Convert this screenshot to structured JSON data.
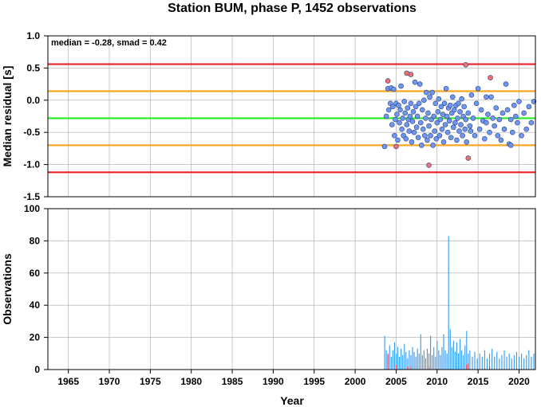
{
  "chart_data": [
    {
      "type": "scatter",
      "title": "Station BUM, phase P, 1452 observations",
      "annotation": "median = -0.28, smad = 0.42",
      "ylabel": "Median residual [s]",
      "xlim": [
        1962.5,
        2022.0
      ],
      "ylim": [
        -1.5,
        1.0
      ],
      "yticks": [
        "1.0",
        "0.5",
        "0.0",
        "-0.5",
        "-1.0",
        "-1.5"
      ],
      "ytick_values": [
        1.0,
        0.5,
        0.0,
        -0.5,
        -1.0,
        -1.5
      ],
      "grid": true,
      "reference_lines": [
        {
          "y": 0.56,
          "color": "#e8202a"
        },
        {
          "y": 0.14,
          "color": "#f5a623"
        },
        {
          "y": -0.28,
          "color": "#22ee22"
        },
        {
          "y": -0.7,
          "color": "#f5a623"
        },
        {
          "y": -1.12,
          "color": "#e8202a"
        }
      ],
      "series": [
        {
          "color": "#6f97ee",
          "points": [
            [
              2003.6,
              -0.72
            ],
            [
              2003.8,
              -0.25
            ],
            [
              2004.0,
              0.18
            ],
            [
              2004.1,
              -0.15
            ],
            [
              2004.3,
              -0.05
            ],
            [
              2004.4,
              0.19
            ],
            [
              2004.5,
              -0.38
            ],
            [
              2004.6,
              -0.1
            ],
            [
              2004.7,
              0.17
            ],
            [
              2004.8,
              -0.55
            ],
            [
              2004.9,
              -0.3
            ],
            [
              2005.0,
              -0.05
            ],
            [
              2005.1,
              -0.22
            ],
            [
              2005.2,
              -0.62
            ],
            [
              2005.3,
              -0.08
            ],
            [
              2005.4,
              -0.35
            ],
            [
              2005.5,
              -0.15
            ],
            [
              2005.6,
              0.22
            ],
            [
              2005.7,
              -0.45
            ],
            [
              2005.8,
              -0.28
            ],
            [
              2005.9,
              -0.55
            ],
            [
              2006.0,
              -0.02
            ],
            [
              2006.1,
              -0.2
            ],
            [
              2006.2,
              -0.6
            ],
            [
              2006.3,
              -0.38
            ],
            [
              2006.4,
              -0.12
            ],
            [
              2006.5,
              -0.3
            ],
            [
              2006.6,
              -0.48
            ],
            [
              2006.7,
              -0.25
            ],
            [
              2006.8,
              -0.05
            ],
            [
              2006.9,
              -0.65
            ],
            [
              2007.0,
              -0.33
            ],
            [
              2007.1,
              -0.18
            ],
            [
              2007.2,
              -0.5
            ],
            [
              2007.3,
              0.28
            ],
            [
              2007.4,
              -0.1
            ],
            [
              2007.5,
              -0.42
            ],
            [
              2007.6,
              -0.25
            ],
            [
              2007.7,
              -0.58
            ],
            [
              2007.8,
              -0.05
            ],
            [
              2007.9,
              0.25
            ],
            [
              2008.0,
              -0.35
            ],
            [
              2008.1,
              -0.7
            ],
            [
              2008.2,
              -0.15
            ],
            [
              2008.3,
              -0.45
            ],
            [
              2008.4,
              0.0
            ],
            [
              2008.5,
              -0.55
            ],
            [
              2008.6,
              -0.28
            ],
            [
              2008.7,
              0.12
            ],
            [
              2008.8,
              -0.62
            ],
            [
              2008.9,
              -0.2
            ],
            [
              2009.0,
              -0.4
            ],
            [
              2009.1,
              0.05
            ],
            [
              2009.2,
              -0.55
            ],
            [
              2009.3,
              -0.3
            ],
            [
              2009.4,
              0.12
            ],
            [
              2009.5,
              -0.7
            ],
            [
              2009.6,
              -0.25
            ],
            [
              2009.7,
              -0.48
            ],
            [
              2009.8,
              -0.05
            ],
            [
              2009.9,
              -0.6
            ],
            [
              2010.0,
              -0.35
            ],
            [
              2010.1,
              -0.18
            ],
            [
              2010.2,
              0.02
            ],
            [
              2010.3,
              -0.55
            ],
            [
              2010.4,
              -0.3
            ],
            [
              2010.5,
              -0.1
            ],
            [
              2010.6,
              -0.45
            ],
            [
              2010.7,
              -0.22
            ],
            [
              2010.8,
              -0.65
            ],
            [
              2010.9,
              -0.05
            ],
            [
              2011.0,
              -0.38
            ],
            [
              2011.1,
              0.18
            ],
            [
              2011.2,
              -0.25
            ],
            [
              2011.3,
              -0.5
            ],
            [
              2011.4,
              -0.12
            ],
            [
              2011.5,
              -0.32
            ],
            [
              2011.6,
              -0.08
            ],
            [
              2011.7,
              -0.58
            ],
            [
              2011.8,
              -0.2
            ],
            [
              2011.9,
              0.05
            ],
            [
              2012.0,
              -0.42
            ],
            [
              2012.1,
              -0.15
            ],
            [
              2012.2,
              -0.35
            ],
            [
              2012.3,
              -0.08
            ],
            [
              2012.4,
              -0.62
            ],
            [
              2012.5,
              -0.28
            ],
            [
              2012.6,
              -0.05
            ],
            [
              2012.7,
              -0.48
            ],
            [
              2012.8,
              -0.18
            ],
            [
              2012.9,
              -0.38
            ],
            [
              2013.0,
              0.02
            ],
            [
              2013.1,
              -0.55
            ],
            [
              2013.2,
              -0.25
            ],
            [
              2013.3,
              -0.1
            ],
            [
              2013.4,
              -0.45
            ],
            [
              2013.5,
              -0.3
            ],
            [
              2013.6,
              -0.65
            ],
            [
              2013.8,
              -0.2
            ],
            [
              2014.0,
              -0.4
            ],
            [
              2014.2,
              0.08
            ],
            [
              2014.4,
              -0.28
            ],
            [
              2014.6,
              -0.55
            ],
            [
              2014.8,
              -0.05
            ],
            [
              2015.0,
              0.18
            ],
            [
              2015.2,
              -0.45
            ],
            [
              2015.4,
              -0.15
            ],
            [
              2015.6,
              -0.32
            ],
            [
              2015.8,
              -0.6
            ],
            [
              2016.0,
              0.05
            ],
            [
              2016.2,
              -0.22
            ],
            [
              2016.4,
              -0.5
            ],
            [
              2016.6,
              0.05
            ],
            [
              2016.8,
              -0.28
            ],
            [
              2017.0,
              -0.4
            ],
            [
              2017.2,
              -0.12
            ],
            [
              2017.4,
              -0.55
            ],
            [
              2017.6,
              -0.3
            ],
            [
              2017.8,
              -0.62
            ],
            [
              2018.0,
              -0.2
            ],
            [
              2018.2,
              -0.45
            ],
            [
              2018.4,
              0.25
            ],
            [
              2018.6,
              -0.15
            ],
            [
              2018.8,
              -0.68
            ],
            [
              2019.0,
              -0.3
            ],
            [
              2019.2,
              -0.5
            ],
            [
              2019.4,
              -0.08
            ],
            [
              2019.6,
              -0.25
            ],
            [
              2019.8,
              -0.35
            ],
            [
              2020.0,
              -0.02
            ],
            [
              2020.3,
              -0.55
            ],
            [
              2020.6,
              -0.2
            ],
            [
              2020.9,
              -0.45
            ],
            [
              2021.2,
              -0.1
            ],
            [
              2021.5,
              -0.35
            ],
            [
              2021.8,
              -0.02
            ],
            [
              2019.0,
              -0.7
            ],
            [
              2014.1,
              -0.48
            ],
            [
              2016.0,
              -0.35
            ]
          ]
        },
        {
          "color": "#f07070",
          "points": [
            [
              2004.0,
              0.3
            ],
            [
              2005.0,
              -0.72
            ],
            [
              2006.3,
              0.42
            ],
            [
              2006.8,
              0.4
            ],
            [
              2009.0,
              -1.01
            ],
            [
              2013.5,
              0.55
            ],
            [
              2013.8,
              -0.9
            ],
            [
              2016.5,
              0.35
            ]
          ]
        }
      ]
    },
    {
      "type": "bar",
      "ylabel": "Observations",
      "xlabel": "Year",
      "xlim": [
        1962.5,
        2022.0
      ],
      "ylim": [
        0,
        100
      ],
      "xticks": [
        "1965",
        "1970",
        "1975",
        "1980",
        "1985",
        "1990",
        "1995",
        "2000",
        "2005",
        "2010",
        "2015",
        "2020"
      ],
      "xtick_values": [
        1965,
        1970,
        1975,
        1980,
        1985,
        1990,
        1995,
        2000,
        2005,
        2010,
        2015,
        2020
      ],
      "yticks": [
        "100",
        "80",
        "60",
        "40",
        "20",
        "0"
      ],
      "ytick_values": [
        100,
        80,
        60,
        40,
        20,
        0
      ],
      "grid": true,
      "bar_color": "#3399ee",
      "secondary_color": "#e83030",
      "total_counts": [
        [
          2003.6,
          21
        ],
        [
          2003.8,
          12
        ],
        [
          2004.0,
          9
        ],
        [
          2004.2,
          15
        ],
        [
          2004.4,
          8
        ],
        [
          2004.6,
          12
        ],
        [
          2004.8,
          17
        ],
        [
          2005.0,
          10
        ],
        [
          2005.2,
          14
        ],
        [
          2005.4,
          8
        ],
        [
          2005.6,
          13
        ],
        [
          2005.8,
          9
        ],
        [
          2006.0,
          16
        ],
        [
          2006.2,
          11
        ],
        [
          2006.4,
          7
        ],
        [
          2006.6,
          12
        ],
        [
          2006.8,
          9
        ],
        [
          2007.0,
          14
        ],
        [
          2007.2,
          11
        ],
        [
          2007.4,
          8
        ],
        [
          2007.6,
          13
        ],
        [
          2007.8,
          10
        ],
        [
          2008.0,
          22
        ],
        [
          2008.2,
          9
        ],
        [
          2008.4,
          12
        ],
        [
          2008.6,
          7
        ],
        [
          2008.8,
          13
        ],
        [
          2009.0,
          10
        ],
        [
          2009.2,
          21
        ],
        [
          2009.4,
          9
        ],
        [
          2009.6,
          14
        ],
        [
          2009.8,
          8
        ],
        [
          2010.0,
          18
        ],
        [
          2010.2,
          12
        ],
        [
          2010.4,
          9
        ],
        [
          2010.6,
          14
        ],
        [
          2010.8,
          22
        ],
        [
          2011.0,
          12
        ],
        [
          2011.2,
          10
        ],
        [
          2011.4,
          83
        ],
        [
          2011.6,
          25
        ],
        [
          2011.8,
          14
        ],
        [
          2012.0,
          18
        ],
        [
          2012.2,
          11
        ],
        [
          2012.4,
          17
        ],
        [
          2012.6,
          10
        ],
        [
          2012.8,
          19
        ],
        [
          2013.0,
          12
        ],
        [
          2013.2,
          9
        ],
        [
          2013.4,
          15
        ],
        [
          2013.6,
          24
        ],
        [
          2013.8,
          10
        ],
        [
          2014.0,
          12
        ],
        [
          2014.3,
          8
        ],
        [
          2014.6,
          11
        ],
        [
          2014.9,
          7
        ],
        [
          2015.2,
          10
        ],
        [
          2015.5,
          8
        ],
        [
          2015.8,
          12
        ],
        [
          2016.1,
          7
        ],
        [
          2016.4,
          10
        ],
        [
          2016.7,
          13
        ],
        [
          2017.0,
          8
        ],
        [
          2017.3,
          11
        ],
        [
          2017.6,
          7
        ],
        [
          2017.9,
          9
        ],
        [
          2018.2,
          12
        ],
        [
          2018.5,
          8
        ],
        [
          2018.8,
          10
        ],
        [
          2019.1,
          7
        ],
        [
          2019.4,
          9
        ],
        [
          2019.7,
          11
        ],
        [
          2020.0,
          8
        ],
        [
          2020.3,
          10
        ],
        [
          2020.6,
          7
        ],
        [
          2020.9,
          9
        ],
        [
          2021.2,
          12
        ],
        [
          2021.5,
          8
        ],
        [
          2021.8,
          10
        ]
      ],
      "red_counts": [
        [
          2004.0,
          10
        ],
        [
          2005.0,
          3
        ],
        [
          2006.4,
          2
        ],
        [
          2006.8,
          2
        ],
        [
          2009.0,
          2
        ],
        [
          2013.6,
          3
        ],
        [
          2013.8,
          4
        ],
        [
          2016.4,
          2
        ]
      ]
    }
  ]
}
